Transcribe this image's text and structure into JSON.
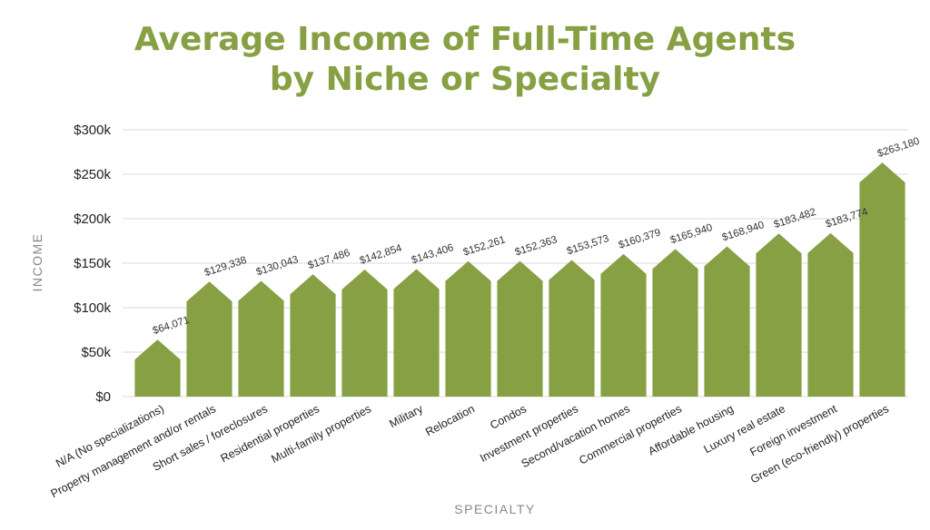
{
  "chart_data": {
    "type": "bar",
    "title_line1": "Average Income of Full-Time Agents",
    "title_line2": "by Niche or Specialty",
    "xlabel": "SPECIALTY",
    "ylabel": "INCOME",
    "ylim": [
      0,
      300000
    ],
    "yticks": [
      0,
      50000,
      100000,
      150000,
      200000,
      250000,
      300000
    ],
    "ytick_labels": [
      "$0",
      "$50k",
      "$100k",
      "$150k",
      "$200k",
      "$250k",
      "$300k"
    ],
    "grid": true,
    "bar_color": "#86a043",
    "grid_color": "#d8d8d8",
    "categories": [
      "N/A (No specializations)",
      "Property management and/or rentals",
      "Short sales / foreclosures",
      "Residential properties",
      "Multi-family properties",
      "Military",
      "Relocation",
      "Condos",
      "Investment properties",
      "Second/vacation homes",
      "Commercial properties",
      "Affordable housing",
      "Luxury real estate",
      "Foreign investment",
      "Green (eco-friendly) properties"
    ],
    "values": [
      64071,
      129338,
      130043,
      137486,
      142854,
      143406,
      152261,
      152363,
      153573,
      160379,
      165940,
      168940,
      183482,
      183774,
      263180
    ],
    "value_labels": [
      "$64,071",
      "$129,338",
      "$130,043",
      "$137,486",
      "$142,854",
      "$143,406",
      "$152,261",
      "$152,363",
      "$153,573",
      "$160,379",
      "$165,940",
      "$168,940",
      "$183,482",
      "$183,774",
      "$263,180"
    ]
  }
}
